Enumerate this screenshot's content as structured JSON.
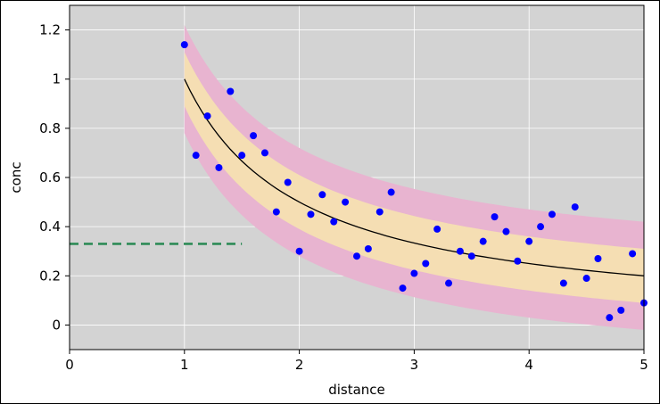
{
  "chart_data": {
    "type": "scatter",
    "title": "",
    "xlabel": "distance",
    "ylabel": "conc",
    "xlim": [
      0,
      5
    ],
    "ylim": [
      -0.1,
      1.3
    ],
    "xticks": [
      0,
      1,
      2,
      3,
      4,
      5
    ],
    "xtick_labels": [
      "0",
      "1",
      "2",
      "3",
      "4",
      "5"
    ],
    "yticks": [
      0,
      0.2,
      0.4,
      0.6,
      0.8,
      1.0,
      1.2
    ],
    "ytick_labels": [
      "0",
      "0.2",
      "0.4",
      "0.6",
      "0.8",
      "1",
      "1.2"
    ],
    "grid": true,
    "legend": "none",
    "colors": {
      "plot_background": "#d3d3d3",
      "grid": "#ffffff",
      "points": "#0000ff",
      "fit_line": "#000000",
      "inner_band": "#f5deb3",
      "outer_band": "#e8b4d0",
      "reference_line": "#2e8b57"
    },
    "fit_curve": {
      "formula": "conc = 1 / distance",
      "x": [
        1.0,
        1.25,
        1.5,
        1.75,
        2.0,
        2.5,
        3.0,
        3.5,
        4.0,
        4.5,
        5.0
      ],
      "y": [
        1.0,
        0.8,
        0.667,
        0.571,
        0.5,
        0.4,
        0.333,
        0.286,
        0.25,
        0.222,
        0.2
      ]
    },
    "inner_band": {
      "x": [
        1.0,
        1.25,
        1.5,
        1.75,
        2.0,
        2.5,
        3.0,
        3.5,
        4.0,
        4.5,
        5.0
      ],
      "lower": [
        0.89,
        0.69,
        0.557,
        0.461,
        0.39,
        0.29,
        0.223,
        0.176,
        0.14,
        0.112,
        0.09
      ],
      "upper": [
        1.11,
        0.91,
        0.777,
        0.681,
        0.61,
        0.51,
        0.443,
        0.396,
        0.36,
        0.332,
        0.31
      ]
    },
    "outer_band": {
      "x": [
        1.0,
        1.25,
        1.5,
        1.75,
        2.0,
        2.5,
        3.0,
        3.5,
        4.0,
        4.5,
        5.0
      ],
      "lower": [
        0.78,
        0.58,
        0.447,
        0.351,
        0.28,
        0.18,
        0.113,
        0.066,
        0.03,
        0.002,
        -0.02
      ],
      "upper": [
        1.22,
        1.02,
        0.887,
        0.791,
        0.72,
        0.62,
        0.553,
        0.506,
        0.47,
        0.442,
        0.42
      ]
    },
    "reference_line": {
      "y": 0.33,
      "x_start": 0,
      "x_end": 1.5,
      "style": "dashed"
    },
    "points": {
      "x": [
        1.0,
        1.1,
        1.2,
        1.3,
        1.4,
        1.5,
        1.6,
        1.7,
        1.8,
        1.9,
        2.0,
        2.1,
        2.2,
        2.3,
        2.4,
        2.5,
        2.6,
        2.7,
        2.8,
        2.9,
        3.0,
        3.1,
        3.2,
        3.3,
        3.4,
        3.5,
        3.6,
        3.7,
        3.8,
        3.9,
        4.0,
        4.1,
        4.2,
        4.3,
        4.4,
        4.5,
        4.6,
        4.7,
        4.8,
        4.9,
        5.0
      ],
      "y": [
        1.14,
        0.69,
        0.85,
        0.64,
        0.95,
        0.69,
        0.77,
        0.7,
        0.46,
        0.58,
        0.3,
        0.45,
        0.53,
        0.42,
        0.5,
        0.28,
        0.31,
        0.46,
        0.54,
        0.15,
        0.21,
        0.25,
        0.39,
        0.17,
        0.3,
        0.28,
        0.34,
        0.44,
        0.38,
        0.26,
        0.34,
        0.4,
        0.45,
        0.17,
        0.48,
        0.19,
        0.27,
        0.03,
        0.06,
        0.29,
        0.09
      ]
    }
  }
}
